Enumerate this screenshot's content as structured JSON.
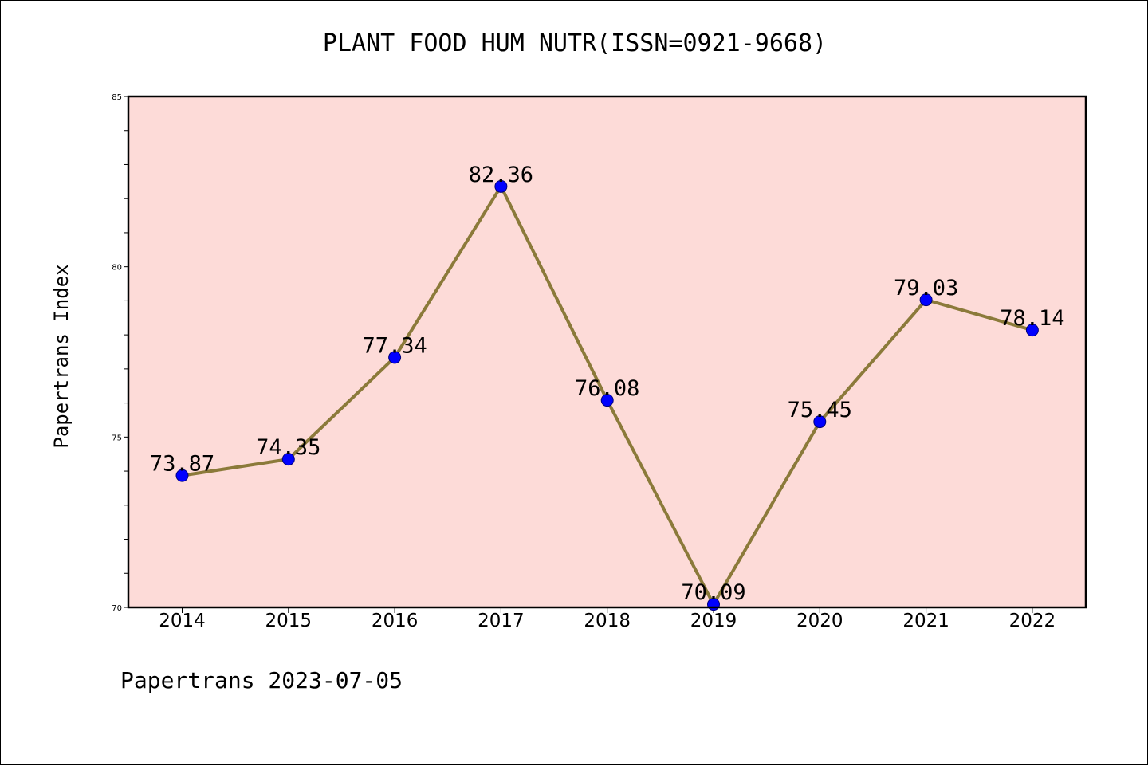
{
  "chart_data": {
    "type": "line",
    "title": "PLANT FOOD HUM NUTR(ISSN=0921-9668)",
    "ylabel": "Papertrans Index",
    "xlabel": "",
    "categories": [
      "2014",
      "2015",
      "2016",
      "2017",
      "2018",
      "2019",
      "2020",
      "2021",
      "2022"
    ],
    "values": [
      73.87,
      74.35,
      77.34,
      82.36,
      76.08,
      70.09,
      75.45,
      79.03,
      78.14
    ],
    "data_labels": [
      "73.87",
      "74.35",
      "77.34",
      "82.36",
      "76.08",
      "70.09",
      "75.45",
      "79.03",
      "78.14"
    ],
    "ylim": [
      70,
      85
    ],
    "y_ticks": [
      70,
      75,
      80,
      85
    ],
    "y_tick_labels": [
      "70",
      "75",
      "80",
      "85"
    ],
    "grid": false,
    "legend": "none",
    "plot_background": "#fddbd8",
    "line_color": "#8b7a3a",
    "marker_color": "#0000ff"
  },
  "footer": {
    "note": "Papertrans 2023-07-05"
  }
}
